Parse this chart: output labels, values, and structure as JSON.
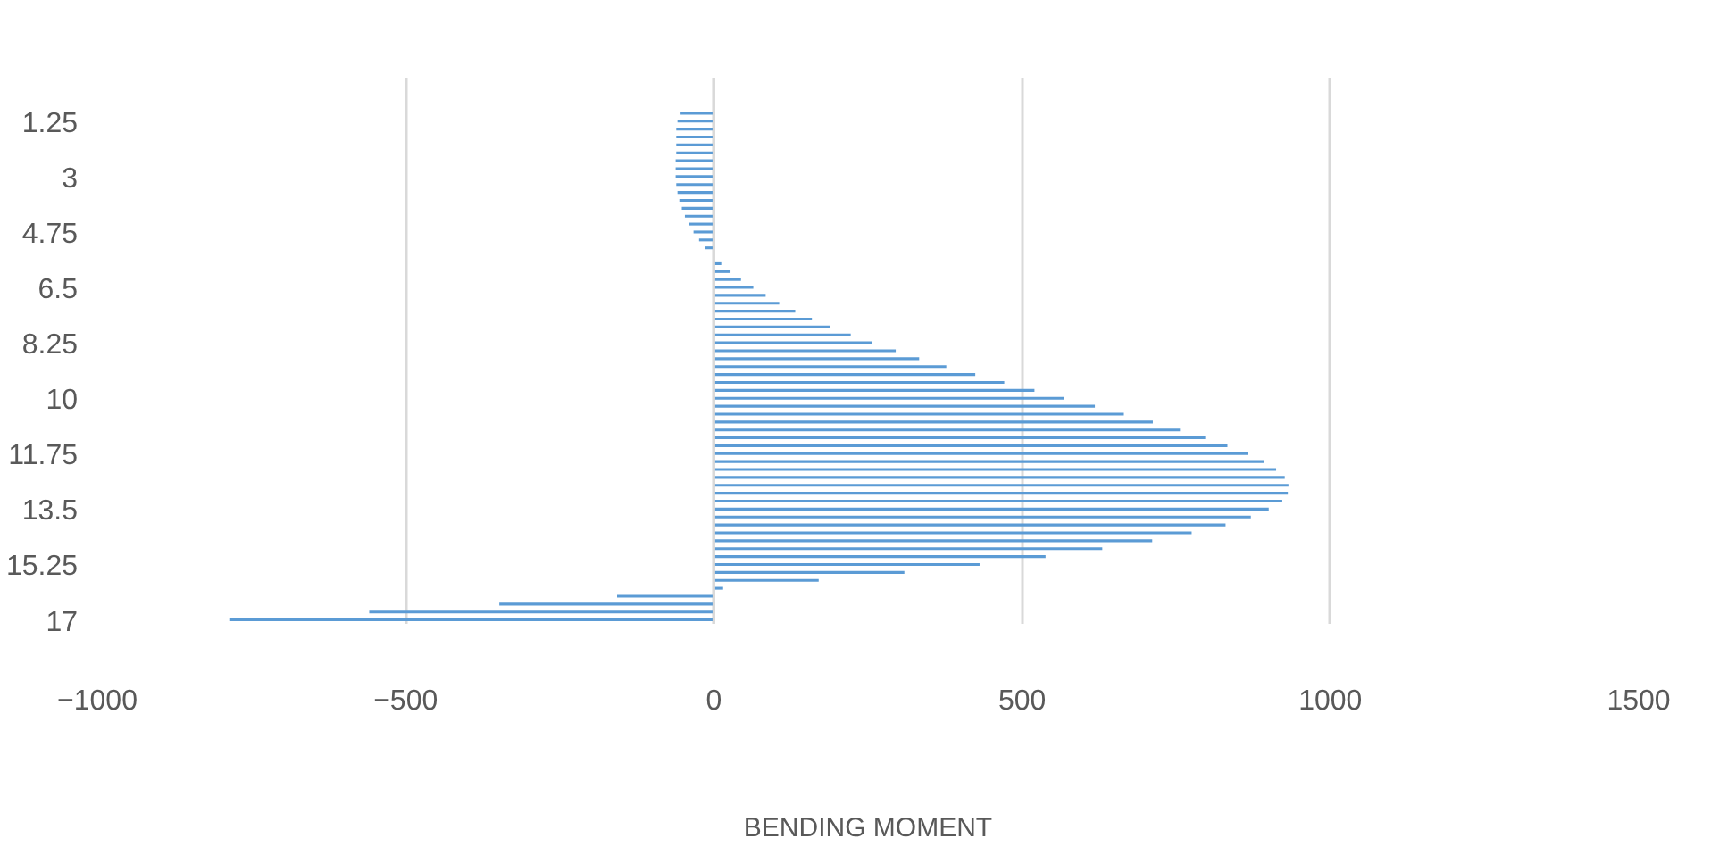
{
  "chart_data": {
    "type": "bar",
    "orientation": "horizontal",
    "xlabel": "BENDING MOMENT",
    "categories": [
      null,
      "1.25",
      null,
      null,
      null,
      null,
      null,
      null,
      "3",
      null,
      null,
      null,
      null,
      null,
      null,
      "4.75",
      null,
      null,
      null,
      null,
      null,
      null,
      "6.5",
      null,
      null,
      null,
      null,
      null,
      null,
      "8.25",
      null,
      null,
      null,
      null,
      null,
      null,
      "10",
      null,
      null,
      null,
      null,
      null,
      null,
      "11.75",
      null,
      null,
      null,
      null,
      null,
      null,
      "13.5",
      null,
      null,
      null,
      null,
      null,
      null,
      "15.25",
      null,
      null,
      null,
      null,
      null,
      null,
      "17"
    ],
    "values": [
      -54,
      -59,
      -61,
      -61,
      -61,
      -61,
      -62,
      -62,
      -62,
      -61,
      -59,
      -56,
      -52,
      -47,
      -41,
      -33,
      -24,
      -14,
      0,
      12,
      27,
      44,
      64,
      84,
      106,
      132,
      159,
      188,
      222,
      256,
      295,
      333,
      377,
      424,
      471,
      520,
      568,
      618,
      665,
      712,
      756,
      797,
      833,
      866,
      892,
      912,
      926,
      932,
      931,
      922,
      900,
      871,
      830,
      775,
      711,
      630,
      538,
      431,
      309,
      170,
      15,
      -157,
      -348,
      -559,
      -786
    ],
    "color": "#5b9bd5",
    "xlim": [
      -1000,
      1500
    ],
    "xticks": [
      -1000,
      -500,
      0,
      500,
      1000,
      1500
    ],
    "grid": "x"
  }
}
